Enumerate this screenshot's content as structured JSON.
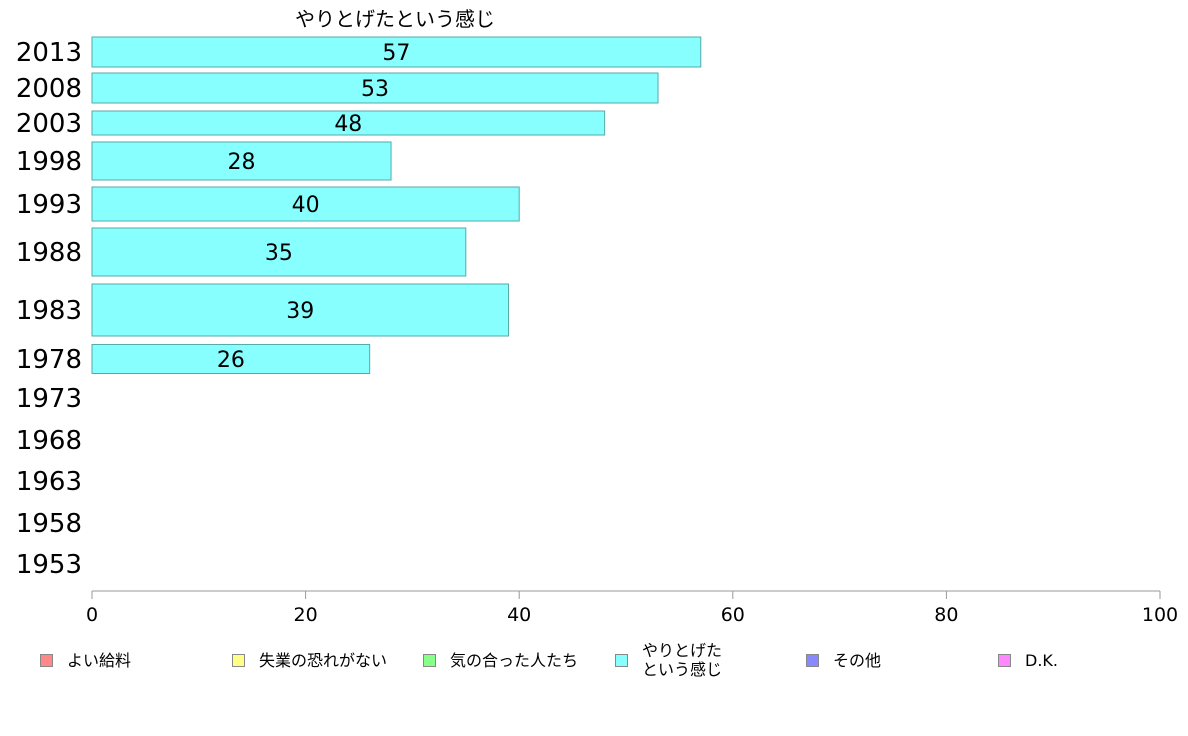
{
  "chart_data": {
    "type": "bar",
    "orientation": "horizontal",
    "title": "やりとげたという感じ",
    "categories": [
      "2013",
      "2008",
      "2003",
      "1998",
      "1993",
      "1988",
      "1983",
      "1978",
      "1973",
      "1968",
      "1963",
      "1958",
      "1953"
    ],
    "values": [
      57,
      53,
      48,
      28,
      40,
      35,
      39,
      26,
      null,
      null,
      null,
      null,
      null
    ],
    "value_labels": [
      "57",
      "53",
      "48",
      "28",
      "40",
      "35",
      "39",
      "26",
      "",
      "",
      "",
      "",
      ""
    ],
    "xlim": [
      0,
      100
    ],
    "xticks": [
      "0",
      "20",
      "40",
      "60",
      "80",
      "100"
    ],
    "bar_color": "#88ffff",
    "bar_border": "#55aaaa",
    "grid": false,
    "legend_position": "bottom",
    "legend": [
      {
        "label": "よい給料",
        "color": "#ff8888"
      },
      {
        "label": "失業の恐れがない",
        "color": "#ffff88"
      },
      {
        "label": "気の合った人たち",
        "color": "#88ff88"
      },
      {
        "label": "やりとげた\nという感じ",
        "color": "#88ffff"
      },
      {
        "label": "その他",
        "color": "#8888ff"
      },
      {
        "label": "D.K.",
        "color": "#ff88ff"
      }
    ]
  }
}
